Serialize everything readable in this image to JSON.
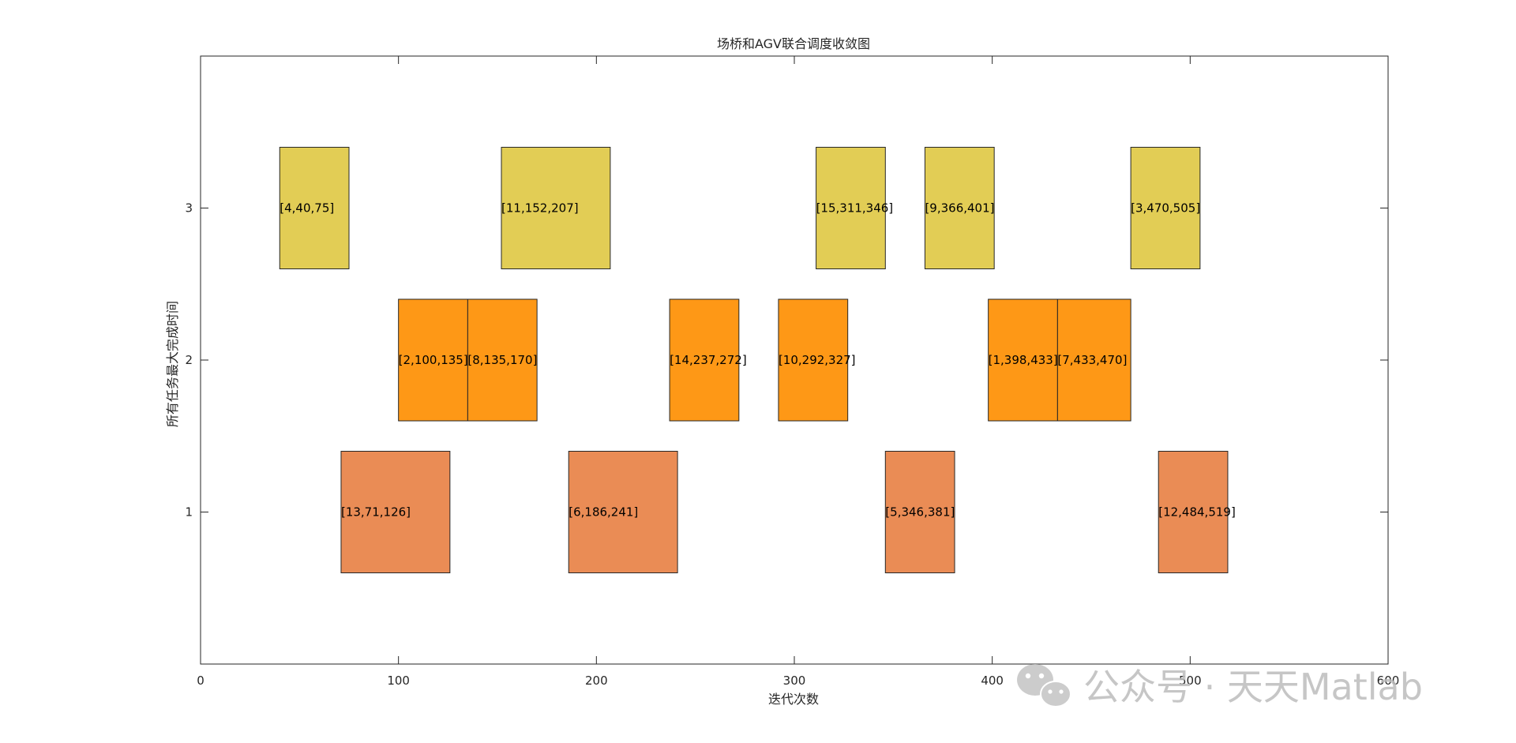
{
  "chart_data": {
    "type": "gantt",
    "title": "场桥和AGV联合调度收敛图",
    "xlabel": "迭代次数",
    "ylabel": "所有任务最大完成时间",
    "xlim": [
      0,
      600
    ],
    "ylim": [
      0,
      4
    ],
    "xticks": [
      0,
      100,
      200,
      300,
      400,
      500,
      600
    ],
    "yticks": [
      1,
      2,
      3
    ],
    "grid": false,
    "bar_height": 0.8,
    "row_colors": {
      "1": "#EA8C55",
      "2": "#FE9816",
      "3": "#E2CD55"
    },
    "bars": [
      {
        "row": 3,
        "start": 40,
        "end": 75,
        "label": "[4,40,75]"
      },
      {
        "row": 3,
        "start": 152,
        "end": 207,
        "label": "[11,152,207]"
      },
      {
        "row": 3,
        "start": 311,
        "end": 346,
        "label": "[15,311,346]"
      },
      {
        "row": 3,
        "start": 366,
        "end": 401,
        "label": "[9,366,401]"
      },
      {
        "row": 3,
        "start": 470,
        "end": 505,
        "label": "[3,470,505]"
      },
      {
        "row": 2,
        "start": 100,
        "end": 135,
        "label": "[2,100,135]"
      },
      {
        "row": 2,
        "start": 135,
        "end": 170,
        "label": "[8,135,170]"
      },
      {
        "row": 2,
        "start": 237,
        "end": 272,
        "label": "[14,237,272]"
      },
      {
        "row": 2,
        "start": 292,
        "end": 327,
        "label": "[10,292,327]"
      },
      {
        "row": 2,
        "start": 398,
        "end": 433,
        "label": "[1,398,433]"
      },
      {
        "row": 2,
        "start": 433,
        "end": 470,
        "label": "[7,433,470]"
      },
      {
        "row": 1,
        "start": 71,
        "end": 126,
        "label": "[13,71,126]"
      },
      {
        "row": 1,
        "start": 186,
        "end": 241,
        "label": "[6,186,241]"
      },
      {
        "row": 1,
        "start": 346,
        "end": 381,
        "label": "[5,346,381]"
      },
      {
        "row": 1,
        "start": 484,
        "end": 519,
        "label": "[12,484,519]"
      }
    ]
  },
  "watermark": {
    "text": "公众号 · 天天Matlab",
    "icon": "wechat-icon"
  }
}
